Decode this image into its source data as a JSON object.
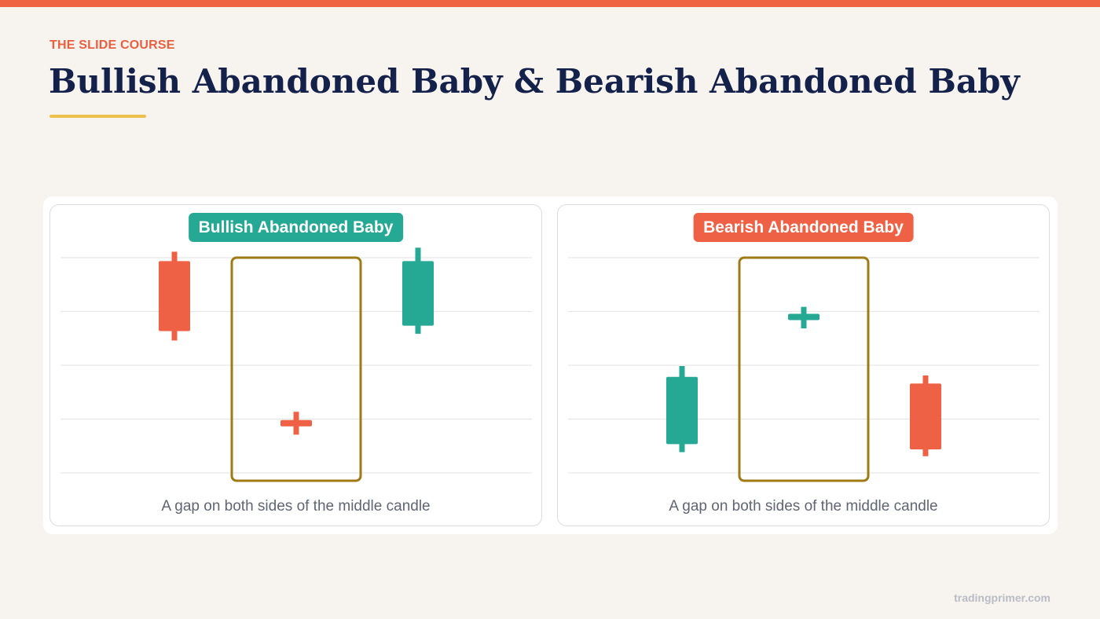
{
  "header": {
    "eyebrow": "THE SLIDE COURSE",
    "title": "Bullish Abandoned Baby & Bearish Abandoned Baby"
  },
  "colors": {
    "accent": "#ef6343",
    "bullish": "#26a994",
    "bearish": "#ef6145",
    "highlight_box": "#a07a14",
    "underline": "#f0c04e",
    "title": "#14214a"
  },
  "panels": [
    {
      "badge": "Bullish Abandoned Baby",
      "badge_color": "#26a994",
      "caption": "A gap on both sides of the middle candle",
      "candles": [
        {
          "direction": "bearish",
          "open": 7.9,
          "close": 5.3,
          "high": 8.25,
          "low": 4.95
        },
        {
          "direction": "bearish",
          "open": 1.9,
          "close": 1.85,
          "high": 2.3,
          "low": 1.45
        },
        {
          "direction": "bullish",
          "open": 5.5,
          "close": 7.9,
          "high": 8.4,
          "low": 5.2
        }
      ],
      "highlighted_candle_index": 1
    },
    {
      "badge": "Bearish Abandoned Baby",
      "badge_color": "#ef6145",
      "caption": "A gap on both sides of the middle candle",
      "candles": [
        {
          "direction": "bullish",
          "open": 1.1,
          "close": 3.6,
          "high": 4.0,
          "low": 0.8
        },
        {
          "direction": "bullish",
          "open": 5.8,
          "close": 5.85,
          "high": 6.2,
          "low": 5.4
        },
        {
          "direction": "bearish",
          "open": 3.35,
          "close": 0.9,
          "high": 3.65,
          "low": 0.65
        }
      ],
      "highlighted_candle_index": 1
    }
  ],
  "footer": {
    "site": "tradingprimer.com"
  }
}
